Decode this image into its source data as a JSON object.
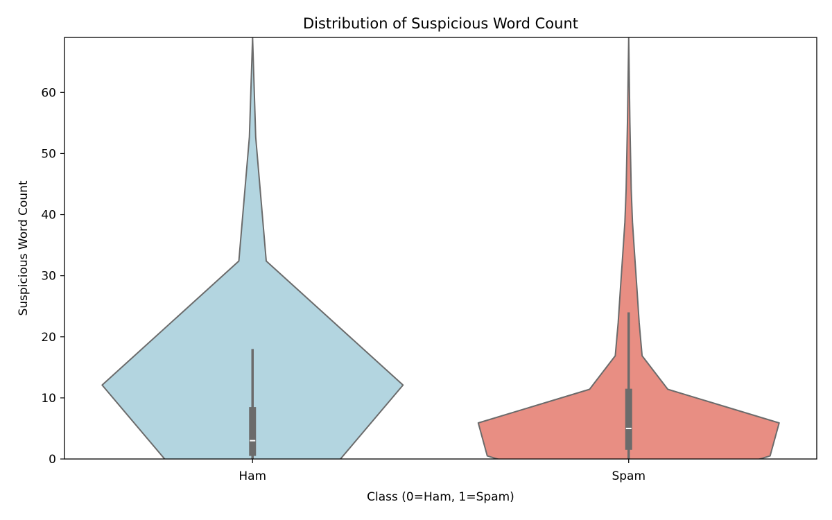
{
  "chart_data": {
    "type": "violin",
    "title": "Distribution of Suspicious Word Count",
    "xlabel": "Class (0=Ham, 1=Spam)",
    "ylabel": "Suspicious Word Count",
    "ylim": [
      0,
      69
    ],
    "yticks": [
      0,
      10,
      20,
      30,
      40,
      50,
      60
    ],
    "grid": false,
    "categories": [
      "Ham",
      "Spam"
    ],
    "outline_color": "#6b6b6b",
    "series": [
      {
        "category": "Ham",
        "color": "#b3d5e0",
        "density_profile": [
          [
            -1.0,
            0.55
          ],
          [
            12.1,
            1.0
          ],
          [
            32.4,
            0.091
          ],
          [
            52.7,
            0.021
          ],
          [
            69.0,
            0.0
          ]
        ],
        "box": {
          "q1": 0.5,
          "median": 3.0,
          "q3": 8.5,
          "whisker_low": 0.0,
          "whisker_high": 18.0
        }
      },
      {
        "category": "Spam",
        "color": "#e88e83",
        "density_profile": [
          [
            -0.6,
            0.79
          ],
          [
            0.5,
            0.94
          ],
          [
            5.9,
            1.0
          ],
          [
            11.4,
            0.26
          ],
          [
            16.9,
            0.089
          ],
          [
            22.3,
            0.07
          ],
          [
            27.8,
            0.055
          ],
          [
            33.3,
            0.04
          ],
          [
            38.8,
            0.025
          ],
          [
            44.2,
            0.017
          ],
          [
            55.1,
            0.008
          ],
          [
            69.0,
            0.0
          ]
        ],
        "box": {
          "q1": 1.5,
          "median": 5.0,
          "q3": 11.5,
          "whisker_low": 0.0,
          "whisker_high": 24.0
        }
      }
    ]
  }
}
